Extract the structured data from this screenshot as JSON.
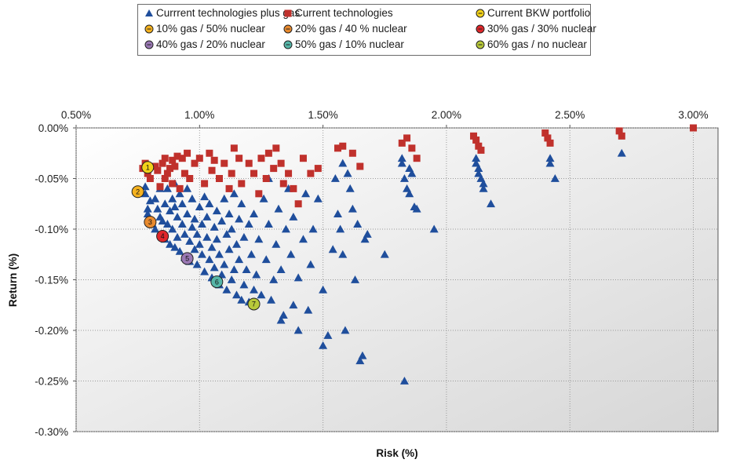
{
  "chart_data": {
    "type": "scatter",
    "xlabel": "Risk (%)",
    "ylabel": "Return (%)",
    "xlim": [
      0.5,
      3.1
    ],
    "ylim": [
      -0.3,
      0.0
    ],
    "x_ticks": [
      "0.50%",
      "1.00%",
      "1.50%",
      "2.00%",
      "2.50%",
      "3.00%"
    ],
    "x_tick_values": [
      0.5,
      1.0,
      1.5,
      2.0,
      2.5,
      3.0
    ],
    "y_ticks": [
      "0.00%",
      "-0.05%",
      "-0.10%",
      "-0.15%",
      "-0.20%",
      "-0.25%",
      "-0.30%"
    ],
    "y_tick_values": [
      0.0,
      -0.05,
      -0.1,
      -0.15,
      -0.2,
      -0.25,
      -0.3
    ],
    "grid": "dotted",
    "legend_position": "top",
    "series": [
      {
        "name": "Currrent technologies plus gas",
        "marker": "triangle",
        "color": "#1f4e9c",
        "points": [
          [
            0.78,
            -0.058
          ],
          [
            0.78,
            -0.065
          ],
          [
            0.79,
            -0.08
          ],
          [
            0.79,
            -0.085
          ],
          [
            0.8,
            -0.072
          ],
          [
            0.8,
            -0.09
          ],
          [
            0.81,
            -0.095
          ],
          [
            0.82,
            -0.07
          ],
          [
            0.82,
            -0.1
          ],
          [
            0.83,
            -0.08
          ],
          [
            0.84,
            -0.06
          ],
          [
            0.84,
            -0.088
          ],
          [
            0.85,
            -0.092
          ],
          [
            0.85,
            -0.105
          ],
          [
            0.86,
            -0.075
          ],
          [
            0.86,
            -0.11
          ],
          [
            0.87,
            -0.06
          ],
          [
            0.87,
            -0.095
          ],
          [
            0.88,
            -0.115
          ],
          [
            0.88,
            -0.082
          ],
          [
            0.89,
            -0.07
          ],
          [
            0.89,
            -0.1
          ],
          [
            0.9,
            -0.055
          ],
          [
            0.9,
            -0.078
          ],
          [
            0.9,
            -0.118
          ],
          [
            0.91,
            -0.088
          ],
          [
            0.91,
            -0.108
          ],
          [
            0.92,
            -0.065
          ],
          [
            0.92,
            -0.122
          ],
          [
            0.93,
            -0.095
          ],
          [
            0.93,
            -0.075
          ],
          [
            0.94,
            -0.105
          ],
          [
            0.94,
            -0.128
          ],
          [
            0.95,
            -0.085
          ],
          [
            0.95,
            -0.06
          ],
          [
            0.96,
            -0.112
          ],
          [
            0.96,
            -0.132
          ],
          [
            0.97,
            -0.098
          ],
          [
            0.97,
            -0.07
          ],
          [
            0.98,
            -0.12
          ],
          [
            0.98,
            -0.09
          ],
          [
            0.99,
            -0.105
          ],
          [
            0.99,
            -0.135
          ],
          [
            1.0,
            -0.078
          ],
          [
            1.0,
            -0.115
          ],
          [
            1.01,
            -0.095
          ],
          [
            1.01,
            -0.125
          ],
          [
            1.02,
            -0.068
          ],
          [
            1.02,
            -0.142
          ],
          [
            1.03,
            -0.108
          ],
          [
            1.03,
            -0.088
          ],
          [
            1.04,
            -0.13
          ],
          [
            1.04,
            -0.075
          ],
          [
            1.05,
            -0.118
          ],
          [
            1.05,
            -0.148
          ],
          [
            1.06,
            -0.098
          ],
          [
            1.06,
            -0.138
          ],
          [
            1.07,
            -0.082
          ],
          [
            1.07,
            -0.11
          ],
          [
            1.08,
            -0.155
          ],
          [
            1.08,
            -0.125
          ],
          [
            1.09,
            -0.092
          ],
          [
            1.09,
            -0.145
          ],
          [
            1.1,
            -0.07
          ],
          [
            1.1,
            -0.135
          ],
          [
            1.11,
            -0.105
          ],
          [
            1.11,
            -0.16
          ],
          [
            1.12,
            -0.12
          ],
          [
            1.12,
            -0.085
          ],
          [
            1.13,
            -0.15
          ],
          [
            1.13,
            -0.1
          ],
          [
            1.14,
            -0.065
          ],
          [
            1.14,
            -0.14
          ],
          [
            1.15,
            -0.165
          ],
          [
            1.15,
            -0.115
          ],
          [
            1.16,
            -0.09
          ],
          [
            1.16,
            -0.13
          ],
          [
            1.17,
            -0.17
          ],
          [
            1.17,
            -0.075
          ],
          [
            1.18,
            -0.155
          ],
          [
            1.18,
            -0.108
          ],
          [
            1.19,
            -0.14
          ],
          [
            1.2,
            -0.172
          ],
          [
            1.2,
            -0.095
          ],
          [
            1.21,
            -0.125
          ],
          [
            1.22,
            -0.16
          ],
          [
            1.22,
            -0.085
          ],
          [
            1.23,
            -0.145
          ],
          [
            1.24,
            -0.11
          ],
          [
            1.25,
            -0.165
          ],
          [
            1.26,
            -0.07
          ],
          [
            1.27,
            -0.13
          ],
          [
            1.28,
            -0.05
          ],
          [
            1.28,
            -0.095
          ],
          [
            1.29,
            -0.17
          ],
          [
            1.3,
            -0.15
          ],
          [
            1.31,
            -0.115
          ],
          [
            1.32,
            -0.08
          ],
          [
            1.33,
            -0.19
          ],
          [
            1.33,
            -0.14
          ],
          [
            1.34,
            -0.185
          ],
          [
            1.35,
            -0.1
          ],
          [
            1.36,
            -0.06
          ],
          [
            1.37,
            -0.125
          ],
          [
            1.38,
            -0.175
          ],
          [
            1.38,
            -0.088
          ],
          [
            1.4,
            -0.2
          ],
          [
            1.4,
            -0.148
          ],
          [
            1.42,
            -0.11
          ],
          [
            1.43,
            -0.065
          ],
          [
            1.44,
            -0.18
          ],
          [
            1.45,
            -0.135
          ],
          [
            1.46,
            -0.1
          ],
          [
            1.48,
            -0.07
          ],
          [
            1.5,
            -0.215
          ],
          [
            1.5,
            -0.16
          ],
          [
            1.52,
            -0.205
          ],
          [
            1.54,
            -0.12
          ],
          [
            1.55,
            -0.05
          ],
          [
            1.56,
            -0.085
          ],
          [
            1.57,
            -0.1
          ],
          [
            1.58,
            -0.035
          ],
          [
            1.58,
            -0.125
          ],
          [
            1.59,
            -0.2
          ],
          [
            1.6,
            -0.045
          ],
          [
            1.61,
            -0.06
          ],
          [
            1.62,
            -0.08
          ],
          [
            1.63,
            -0.15
          ],
          [
            1.64,
            -0.095
          ],
          [
            1.65,
            -0.23
          ],
          [
            1.66,
            -0.225
          ],
          [
            1.67,
            -0.11
          ],
          [
            1.68,
            -0.105
          ],
          [
            1.75,
            -0.125
          ],
          [
            1.82,
            -0.03
          ],
          [
            1.82,
            -0.035
          ],
          [
            1.83,
            -0.05
          ],
          [
            1.83,
            -0.25
          ],
          [
            1.84,
            -0.06
          ],
          [
            1.85,
            -0.04
          ],
          [
            1.85,
            -0.065
          ],
          [
            1.86,
            -0.045
          ],
          [
            1.87,
            -0.078
          ],
          [
            1.88,
            -0.08
          ],
          [
            1.95,
            -0.1
          ],
          [
            2.12,
            -0.03
          ],
          [
            2.12,
            -0.035
          ],
          [
            2.13,
            -0.04
          ],
          [
            2.13,
            -0.045
          ],
          [
            2.14,
            -0.05
          ],
          [
            2.15,
            -0.055
          ],
          [
            2.15,
            -0.06
          ],
          [
            2.18,
            -0.075
          ],
          [
            2.42,
            -0.03
          ],
          [
            2.42,
            -0.035
          ],
          [
            2.44,
            -0.05
          ],
          [
            2.71,
            -0.025
          ]
        ]
      },
      {
        "name": "Current technologies",
        "marker": "square",
        "color": "#c0312c",
        "points": [
          [
            0.77,
            -0.04
          ],
          [
            0.78,
            -0.035
          ],
          [
            0.79,
            -0.045
          ],
          [
            0.8,
            -0.05
          ],
          [
            0.82,
            -0.038
          ],
          [
            0.83,
            -0.042
          ],
          [
            0.84,
            -0.058
          ],
          [
            0.85,
            -0.035
          ],
          [
            0.86,
            -0.03
          ],
          [
            0.86,
            -0.05
          ],
          [
            0.87,
            -0.045
          ],
          [
            0.88,
            -0.04
          ],
          [
            0.89,
            -0.032
          ],
          [
            0.89,
            -0.055
          ],
          [
            0.9,
            -0.038
          ],
          [
            0.91,
            -0.028
          ],
          [
            0.92,
            -0.06
          ],
          [
            0.93,
            -0.03
          ],
          [
            0.94,
            -0.045
          ],
          [
            0.95,
            -0.025
          ],
          [
            0.96,
            -0.05
          ],
          [
            0.98,
            -0.035
          ],
          [
            1.0,
            -0.03
          ],
          [
            1.02,
            -0.055
          ],
          [
            1.04,
            -0.025
          ],
          [
            1.05,
            -0.042
          ],
          [
            1.06,
            -0.032
          ],
          [
            1.08,
            -0.05
          ],
          [
            1.1,
            -0.035
          ],
          [
            1.12,
            -0.06
          ],
          [
            1.13,
            -0.045
          ],
          [
            1.14,
            -0.02
          ],
          [
            1.16,
            -0.03
          ],
          [
            1.17,
            -0.055
          ],
          [
            1.2,
            -0.035
          ],
          [
            1.22,
            -0.045
          ],
          [
            1.24,
            -0.065
          ],
          [
            1.25,
            -0.03
          ],
          [
            1.27,
            -0.05
          ],
          [
            1.28,
            -0.025
          ],
          [
            1.3,
            -0.04
          ],
          [
            1.31,
            -0.02
          ],
          [
            1.33,
            -0.035
          ],
          [
            1.34,
            -0.055
          ],
          [
            1.36,
            -0.045
          ],
          [
            1.38,
            -0.06
          ],
          [
            1.4,
            -0.075
          ],
          [
            1.42,
            -0.03
          ],
          [
            1.45,
            -0.045
          ],
          [
            1.48,
            -0.04
          ],
          [
            1.56,
            -0.02
          ],
          [
            1.58,
            -0.018
          ],
          [
            1.62,
            -0.025
          ],
          [
            1.65,
            -0.038
          ],
          [
            1.82,
            -0.015
          ],
          [
            1.84,
            -0.01
          ],
          [
            1.86,
            -0.02
          ],
          [
            1.88,
            -0.03
          ],
          [
            2.11,
            -0.008
          ],
          [
            2.12,
            -0.012
          ],
          [
            2.13,
            -0.018
          ],
          [
            2.14,
            -0.022
          ],
          [
            2.4,
            -0.005
          ],
          [
            2.41,
            -0.01
          ],
          [
            2.42,
            -0.015
          ],
          [
            2.7,
            -0.003
          ],
          [
            2.71,
            -0.008
          ],
          [
            3.0,
            0.0
          ]
        ]
      },
      {
        "name": "Current BKW portfolio",
        "marker": "circle",
        "label": "1",
        "color": "#f2d21a",
        "points": [
          [
            0.79,
            -0.039
          ]
        ]
      },
      {
        "name": "10% gas / 50% nuclear",
        "marker": "circle",
        "label": "2",
        "color": "#f5b21f",
        "points": [
          [
            0.75,
            -0.063
          ]
        ]
      },
      {
        "name": "20% gas / 40 % nuclear",
        "marker": "circle",
        "label": "3",
        "color": "#e88a2e",
        "points": [
          [
            0.8,
            -0.093
          ]
        ]
      },
      {
        "name": "30% gas / 30% nuclear",
        "marker": "circle",
        "label": "4",
        "color": "#e0262a",
        "points": [
          [
            0.85,
            -0.107
          ]
        ]
      },
      {
        "name": "40% gas / 20% nuclear",
        "marker": "circle",
        "label": "5",
        "color": "#9a78b4",
        "points": [
          [
            0.95,
            -0.129
          ]
        ]
      },
      {
        "name": "50% gas / 10% nuclear",
        "marker": "circle",
        "label": "6",
        "color": "#56b6a8",
        "points": [
          [
            1.07,
            -0.152
          ]
        ]
      },
      {
        "name": "60% gas / no nuclear",
        "marker": "circle",
        "label": "7",
        "color": "#b8c93a",
        "points": [
          [
            1.22,
            -0.174
          ]
        ]
      }
    ]
  }
}
